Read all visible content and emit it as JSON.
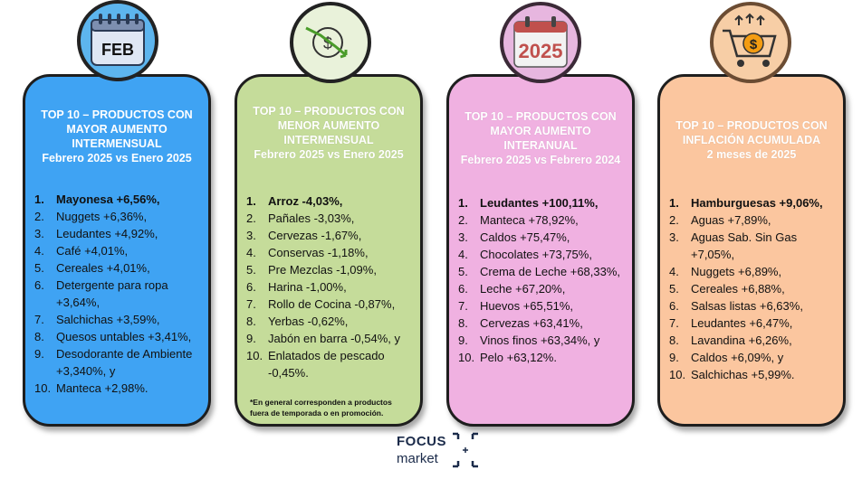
{
  "icons": {
    "calendar_label": "FEB",
    "year_label": "2025"
  },
  "cards": [
    {
      "heading": [
        "TOP 10 – PRODUCTOS CON",
        "MAYOR AUMENTO",
        "INTERMENSUAL",
        "Febrero 2025 vs  Enero 2025"
      ],
      "items": [
        {
          "num": "1.",
          "text": "Mayonesa +6,56%,"
        },
        {
          "num": "2.",
          "text": "Nuggets +6,36%,"
        },
        {
          "num": "3.",
          "text": "Leudantes +4,92%,"
        },
        {
          "num": "4.",
          "text": "Café +4,01%,"
        },
        {
          "num": "5.",
          "text": "Cereales +4,01%,"
        },
        {
          "num": "6.",
          "text": "Detergente para ropa +3,64%,"
        },
        {
          "num": "7.",
          "text": "Salchichas +3,59%,"
        },
        {
          "num": "8.",
          "text": "Quesos untables +3,41%,"
        },
        {
          "num": "9.",
          "text": "Desodorante de Ambiente +3,340%, y"
        },
        {
          "num": "10.",
          "text": "Manteca +2,98%."
        }
      ]
    },
    {
      "heading": [
        "TOP 10 – PRODUCTOS CON",
        "MENOR AUMENTO",
        "INTERMENSUAL",
        "Febrero 2025 vs  Enero 2025"
      ],
      "items": [
        {
          "num": "1.",
          "text": "Arroz -4,03%,"
        },
        {
          "num": "2.",
          "text": "Pañales -3,03%,"
        },
        {
          "num": "3.",
          "text": "Cervezas -1,67%,"
        },
        {
          "num": "4.",
          "text": "Conservas -1,18%,"
        },
        {
          "num": "5.",
          "text": "Pre Mezclas -1,09%,"
        },
        {
          "num": "6.",
          "text": "Harina -1,00%,"
        },
        {
          "num": "7.",
          "text": "Rollo de Cocina -0,87%,"
        },
        {
          "num": "8.",
          "text": "Yerbas  -0,62%,"
        },
        {
          "num": "9.",
          "text": "Jabón en barra  -0,54%, y"
        },
        {
          "num": "10.",
          "text": "Enlatados de pescado -0,45%."
        }
      ],
      "note": "*En general corresponden a productos fuera de temporada o en promoción."
    },
    {
      "heading": [
        "TOP 10 – PRODUCTOS CON",
        "MAYOR AUMENTO",
        "INTERANUAL",
        "Febrero 2025 vs  Febrero 2024"
      ],
      "items": [
        {
          "num": "1.",
          "text": "Leudantes +100,11%,"
        },
        {
          "num": "2.",
          "text": "Manteca +78,92%,"
        },
        {
          "num": "3.",
          "text": "Caldos +75,47%,"
        },
        {
          "num": "4.",
          "text": "Chocolates +73,75%,"
        },
        {
          "num": "5.",
          "text": "Crema de Leche +68,33%,"
        },
        {
          "num": "6.",
          "text": "Leche +67,20%,"
        },
        {
          "num": "7.",
          "text": "Huevos +65,51%,"
        },
        {
          "num": "8.",
          "text": "Cervezas  +63,41%,"
        },
        {
          "num": "9.",
          "text": "Vinos finos  +63,34%, y"
        },
        {
          "num": "10.",
          "text": "Pelo +63,12%."
        }
      ]
    },
    {
      "heading": [
        "TOP 10 – PRODUCTOS CON",
        "INFLACIÓN ACUMULADA",
        "2 meses de 2025"
      ],
      "items": [
        {
          "num": "1.",
          "text": "Hamburguesas +9,06%,"
        },
        {
          "num": "2.",
          "text": "Aguas +7,89%,"
        },
        {
          "num": "3.",
          "text": "Aguas Sab. Sin Gas +7,05%,"
        },
        {
          "num": "4.",
          "text": "Nuggets +6,89%,"
        },
        {
          "num": "5.",
          "text": "Cereales +6,88%,"
        },
        {
          "num": "6.",
          "text": "Salsas listas +6,63%,"
        },
        {
          "num": "7.",
          "text": "Leudantes +6,47%,"
        },
        {
          "num": "8.",
          "text": "Lavandina +6,26%,"
        },
        {
          "num": "9.",
          "text": "Caldos +6,09%, y"
        },
        {
          "num": "10.",
          "text": "Salchichas +5,99%."
        }
      ]
    }
  ],
  "logo": {
    "line1": "FOCUS",
    "line2": "market"
  }
}
